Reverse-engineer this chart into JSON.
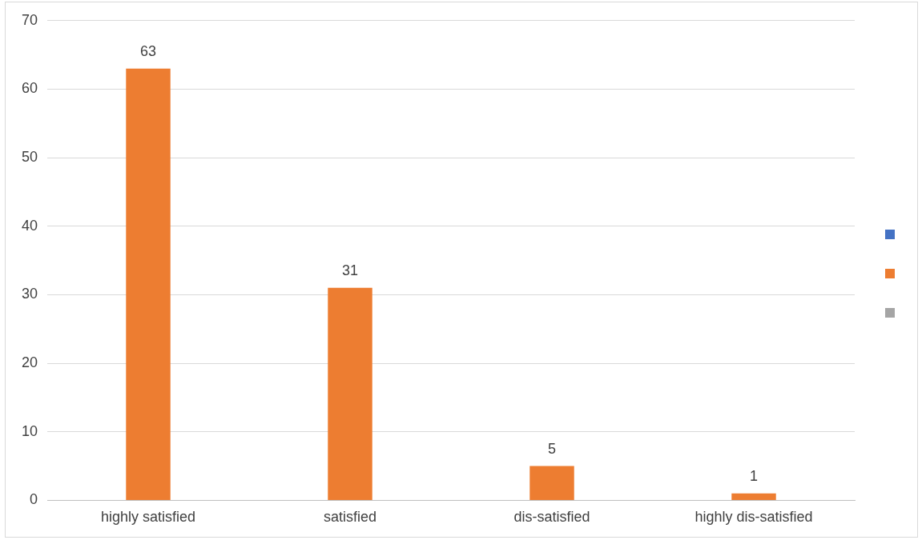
{
  "chart_data": {
    "type": "bar",
    "categories": [
      "highly satisfied",
      "satisfied",
      "dis-satisfied",
      "highly dis-satisfied"
    ],
    "series": [
      {
        "color": "#ed7d31",
        "values": [
          63,
          31,
          5,
          1
        ]
      }
    ],
    "ylim": [
      0,
      70
    ],
    "yticks": [
      0,
      10,
      20,
      30,
      40,
      50,
      60,
      70
    ],
    "grid": "y",
    "data_labels": true
  }
}
